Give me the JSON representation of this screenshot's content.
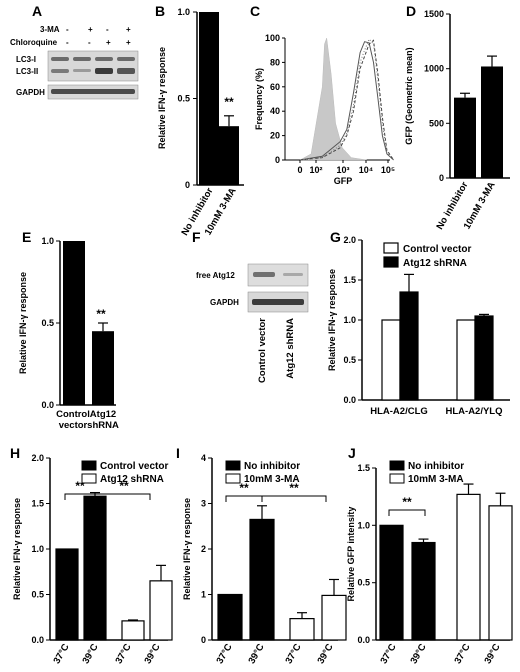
{
  "panels": {
    "A": {
      "letter": "A",
      "rows": [
        {
          "label": "3-MA",
          "signs": [
            "-",
            "+",
            "-",
            "+"
          ]
        },
        {
          "label": "Chloroquine",
          "signs": [
            "-",
            "-",
            "+",
            "+"
          ]
        }
      ],
      "bands": [
        "LC3-I",
        "LC3-II",
        "GAPDH"
      ]
    },
    "B": {
      "letter": "B",
      "chart_data": {
        "type": "bar",
        "categories": [
          "No inhibitor",
          "10mM 3-MA"
        ],
        "values": [
          1.0,
          0.34
        ],
        "errors": [
          0,
          0.06
        ],
        "ylabel": "Relative IFN-γ response",
        "ylim": [
          0,
          1.0
        ],
        "yticks": [
          "0",
          "0.5",
          "1.0"
        ],
        "annotations": [
          "**"
        ]
      }
    },
    "C": {
      "letter": "C",
      "chart_data": {
        "type": "line",
        "ylabel": "Frequency (%)",
        "xlabel": "GFP",
        "yticks": [
          "0",
          "20",
          "40",
          "60",
          "80",
          "100"
        ],
        "xticks": [
          "0",
          "10²",
          "10³",
          "10⁴",
          "10⁵"
        ],
        "ylim": [
          0,
          100
        ],
        "series": [
          {
            "style": "filled-gray",
            "x": [
              0.0,
              0.5,
              1.0,
              1.1,
              1.2,
              1.4,
              1.6,
              1.9,
              2.3,
              3.0
            ],
            "y": [
              0,
              5,
              60,
              95,
              100,
              70,
              30,
              10,
              2,
              0
            ]
          },
          {
            "style": "solid",
            "x": [
              0.0,
              1.0,
              1.8,
              2.1,
              2.4,
              2.7,
              2.9,
              3.1,
              3.3,
              3.5,
              3.7,
              3.9,
              4.2
            ],
            "y": [
              0,
              3,
              15,
              25,
              55,
              88,
              97,
              96,
              80,
              50,
              20,
              5,
              0
            ]
          },
          {
            "style": "dashed",
            "x": [
              0.0,
              1.0,
              1.8,
              2.1,
              2.4,
              2.7,
              2.9,
              3.1,
              3.3,
              3.5,
              3.7,
              3.9,
              4.2
            ],
            "y": [
              0,
              2,
              10,
              20,
              40,
              75,
              85,
              95,
              98,
              70,
              35,
              8,
              0
            ]
          },
          {
            "style": "dotted",
            "x": [
              0.0,
              1.0,
              1.8,
              2.1,
              2.4,
              2.7,
              2.9,
              3.1,
              3.3,
              3.5,
              3.7,
              3.9,
              4.2
            ],
            "y": [
              0,
              2,
              12,
              22,
              45,
              80,
              90,
              99,
              95,
              65,
              30,
              6,
              0
            ]
          }
        ]
      }
    },
    "D": {
      "letter": "D",
      "chart_data": {
        "type": "bar",
        "categories": [
          "No inhibitor",
          "10mM 3-MA"
        ],
        "values": [
          735,
          1020
        ],
        "errors": [
          40,
          95
        ],
        "ylabel": "GFP (Geometric mean)",
        "ylim": [
          0,
          1500
        ],
        "yticks": [
          "0",
          "500",
          "1000",
          "1500"
        ]
      }
    },
    "E": {
      "letter": "E",
      "chart_data": {
        "type": "bar",
        "categories": [
          "Control vector",
          "Atg12 shRNA"
        ],
        "category_lines": [
          [
            "Control",
            "vector"
          ],
          [
            "Atg12",
            "shRNA"
          ]
        ],
        "values": [
          1.0,
          0.45
        ],
        "errors": [
          0,
          0.05
        ],
        "ylabel": "Relative IFN-γ response",
        "ylim": [
          0,
          1.0
        ],
        "yticks": [
          "0.0",
          "0.5",
          "1.0"
        ],
        "annotations": [
          "**"
        ]
      }
    },
    "F": {
      "letter": "F",
      "bands": [
        "free Atg12",
        "GAPDH"
      ],
      "lanes": [
        "Control vector",
        "Atg12 shRNA"
      ]
    },
    "G": {
      "letter": "G",
      "chart_data": {
        "type": "bar",
        "categories": [
          "HLA-A2/CLG",
          "HLA-A2/YLQ"
        ],
        "series": [
          {
            "name": "Control vector",
            "values": [
              1.0,
              1.0
            ],
            "errors": [
              0,
              0
            ],
            "fill": "#ffffff"
          },
          {
            "name": "Atg12 shRNA",
            "values": [
              1.35,
              1.05
            ],
            "errors": [
              0.22,
              0.02
            ],
            "fill": "#000000"
          }
        ],
        "ylabel": "Relative IFN-γ response",
        "ylim": [
          0,
          2.0
        ],
        "yticks": [
          "0.0",
          "0.5",
          "1.0",
          "1.5",
          "2.0"
        ],
        "legend": "top-left"
      }
    },
    "H": {
      "letter": "H",
      "chart_data": {
        "type": "bar",
        "categories": [
          "37°C",
          "39°C",
          "37°C",
          "39°C"
        ],
        "series": [
          {
            "name": "Control vector",
            "fill": "#000000"
          },
          {
            "name": "Atg12 shRNA",
            "fill": "#ffffff"
          }
        ],
        "values": [
          1.0,
          1.58,
          0.21,
          0.65
        ],
        "errors": [
          0,
          0.04,
          0.01,
          0.17
        ],
        "bar_series": [
          0,
          0,
          1,
          1
        ],
        "ylabel": "Relative IFN-γ response",
        "ylim": [
          0,
          2.0
        ],
        "yticks": [
          "0.0",
          "0.5",
          "1.0",
          "1.5",
          "2.0"
        ],
        "annotations": [
          "**",
          "**"
        ],
        "legend": "top-right"
      }
    },
    "I": {
      "letter": "I",
      "chart_data": {
        "type": "bar",
        "categories": [
          "37°C",
          "39°C",
          "37°C",
          "39°C"
        ],
        "series": [
          {
            "name": "No inhibitor",
            "fill": "#000000"
          },
          {
            "name": "10mM 3-MA",
            "fill": "#ffffff"
          }
        ],
        "values": [
          1.0,
          2.65,
          0.47,
          0.98
        ],
        "errors": [
          0,
          0.3,
          0.13,
          0.35
        ],
        "bar_series": [
          0,
          0,
          1,
          1
        ],
        "ylabel": "Relative IFN-γ response",
        "ylim": [
          0,
          4
        ],
        "yticks": [
          "0",
          "1",
          "2",
          "3",
          "4"
        ],
        "annotations": [
          "**",
          "**"
        ],
        "legend": "top-right"
      }
    },
    "J": {
      "letter": "J",
      "chart_data": {
        "type": "bar",
        "categories": [
          "37°C",
          "39°C",
          "37°C",
          "39°C"
        ],
        "series": [
          {
            "name": "No inhibitor",
            "fill": "#000000"
          },
          {
            "name": "10mM 3-MA",
            "fill": "#ffffff"
          }
        ],
        "values": [
          1.0,
          0.85,
          1.27,
          1.17
        ],
        "errors": [
          0,
          0.03,
          0.09,
          0.11
        ],
        "bar_series": [
          0,
          0,
          1,
          1
        ],
        "ylabel": "Relative GFP intensity",
        "ylim": [
          0,
          1.5
        ],
        "yticks": [
          "0.0",
          "0.5",
          "1.0",
          "1.5"
        ],
        "annotations": [
          "**"
        ],
        "legend": "top-right"
      }
    }
  }
}
